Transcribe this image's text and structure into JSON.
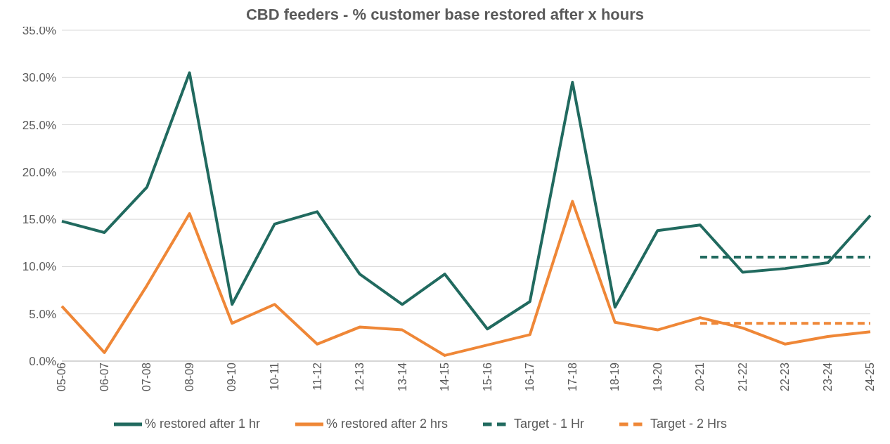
{
  "chart_data": {
    "type": "line",
    "title": "CBD feeders - % customer base restored after x hours",
    "categories": [
      "05-06",
      "06-07",
      "07-08",
      "08-09",
      "09-10",
      "10-11",
      "11-12",
      "12-13",
      "13-14",
      "14-15",
      "15-16",
      "16-17",
      "17-18",
      "18-19",
      "19-20",
      "20-21",
      "21-22",
      "22-23",
      "23-24",
      "24-25"
    ],
    "series": [
      {
        "name": "% restored after 1 hr",
        "color": "#216a5f",
        "line_style": "solid",
        "values": [
          14.8,
          13.6,
          18.4,
          30.5,
          6.0,
          14.5,
          15.8,
          9.2,
          6.0,
          9.2,
          3.4,
          6.3,
          29.5,
          5.7,
          13.8,
          14.4,
          9.4,
          9.8,
          10.4,
          15.4
        ]
      },
      {
        "name": "% restored after 2 hrs",
        "color": "#ef8737",
        "line_style": "solid",
        "values": [
          5.8,
          0.9,
          8.0,
          15.6,
          4.0,
          6.0,
          1.8,
          3.6,
          3.3,
          0.6,
          1.7,
          2.8,
          16.9,
          4.1,
          3.3,
          4.6,
          3.5,
          1.8,
          2.6,
          3.1
        ]
      },
      {
        "name": "Target - 1 Hr",
        "color": "#216a5f",
        "line_style": "dashed",
        "values": [
          null,
          null,
          null,
          null,
          null,
          null,
          null,
          null,
          null,
          null,
          null,
          null,
          null,
          null,
          null,
          11,
          11,
          11,
          11,
          11
        ]
      },
      {
        "name": "Target - 2 Hrs",
        "color": "#ef8737",
        "line_style": "dashed",
        "values": [
          null,
          null,
          null,
          null,
          null,
          null,
          null,
          null,
          null,
          null,
          null,
          null,
          null,
          null,
          null,
          4,
          4,
          4,
          4,
          4
        ]
      }
    ],
    "ylim": [
      0,
      35
    ],
    "yticks": [
      {
        "value": 0,
        "label": "0.0%"
      },
      {
        "value": 5,
        "label": "5.0%"
      },
      {
        "value": 10,
        "label": "10.0%"
      },
      {
        "value": 15,
        "label": "15.0%"
      },
      {
        "value": 20,
        "label": "20.0%"
      },
      {
        "value": 25,
        "label": "25.0%"
      },
      {
        "value": 30,
        "label": "30.0%"
      },
      {
        "value": 35,
        "label": "35.0%"
      }
    ],
    "grid": "y",
    "legend": "bottom",
    "marker": "none"
  }
}
